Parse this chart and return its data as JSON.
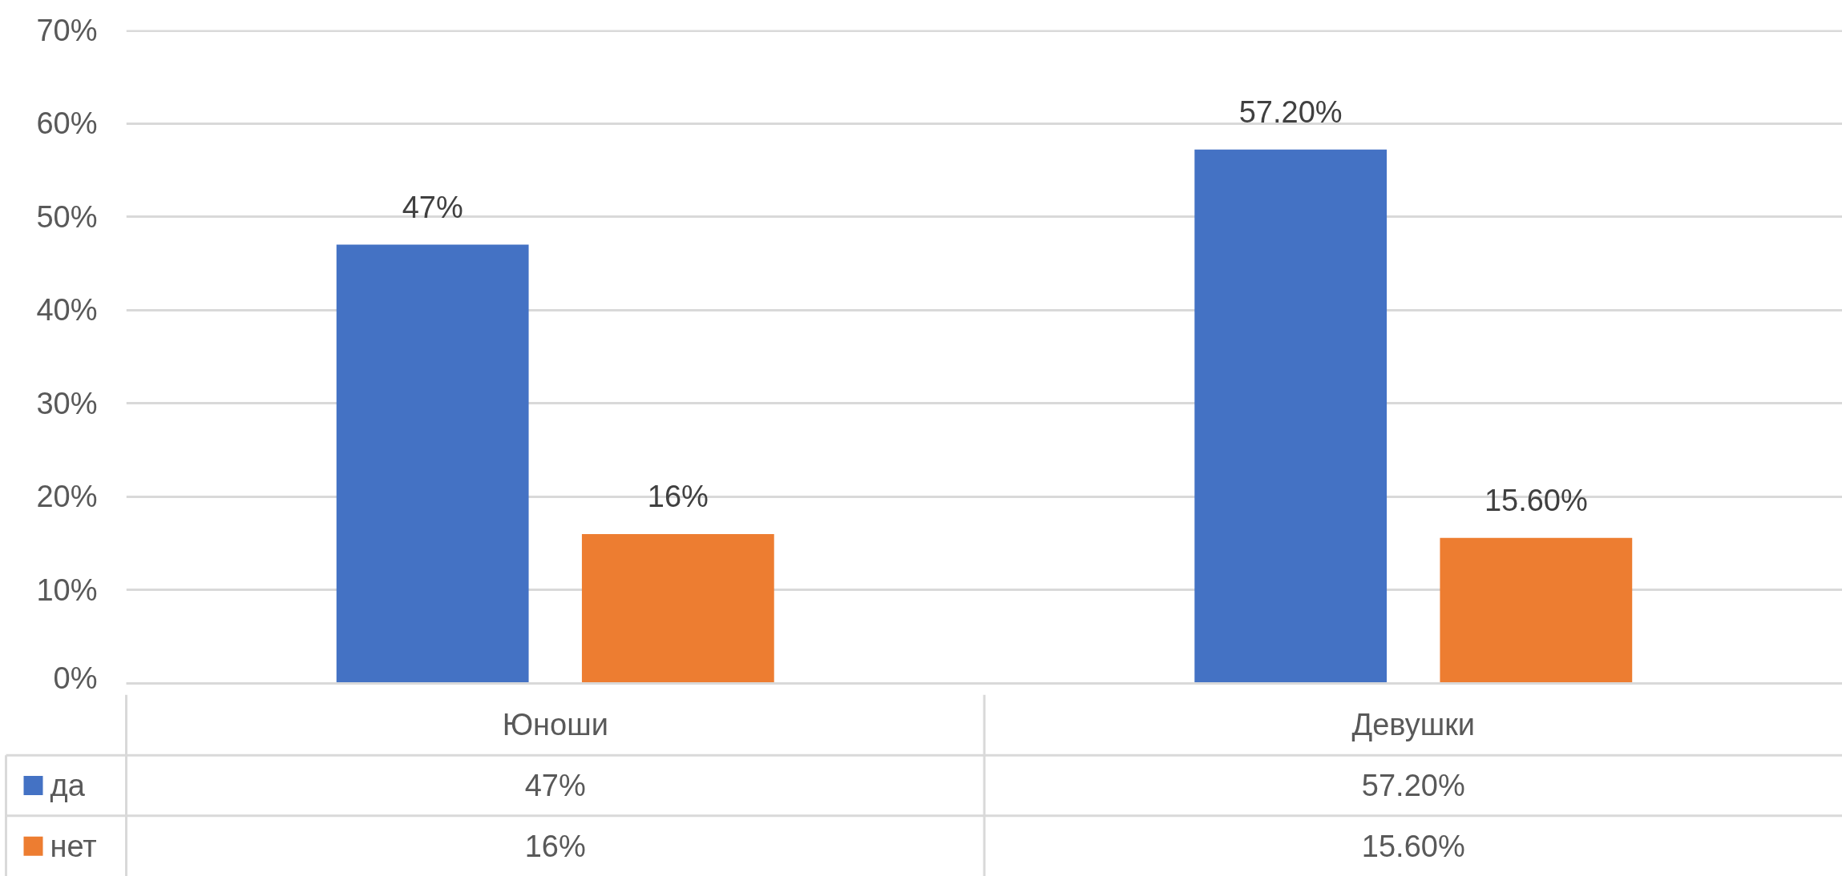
{
  "chart_data": {
    "type": "bar",
    "categories": [
      "Юноши",
      "Девушки"
    ],
    "series": [
      {
        "name": "да",
        "color": "#4472c4",
        "values": [
          47,
          57.2
        ],
        "value_labels": [
          "47%",
          "57.20%"
        ]
      },
      {
        "name": "нет",
        "color": "#ed7d31",
        "values": [
          16,
          15.6
        ],
        "value_labels": [
          "16%",
          "15.60%"
        ]
      }
    ],
    "ylim": [
      0,
      70
    ],
    "yticks": [
      {
        "value": 0,
        "label": "0%"
      },
      {
        "value": 10,
        "label": "10%"
      },
      {
        "value": 20,
        "label": "20%"
      },
      {
        "value": 30,
        "label": "30%"
      },
      {
        "value": 40,
        "label": "40%"
      },
      {
        "value": 50,
        "label": "50%"
      },
      {
        "value": 60,
        "label": "60%"
      },
      {
        "value": 70,
        "label": "70%"
      }
    ],
    "grid": "y",
    "legend": "bottom"
  }
}
